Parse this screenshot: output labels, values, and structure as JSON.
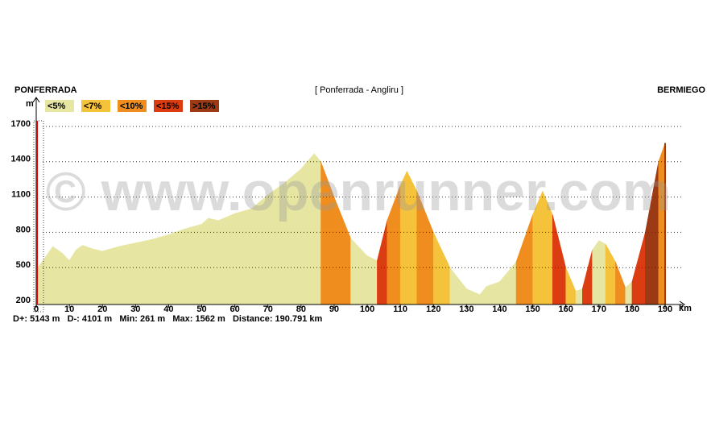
{
  "chart_data": {
    "type": "elevation-area",
    "start_label": "PONFERRADA",
    "title": "[ Ponferrada - Angliru ]",
    "end_label": "BERMIEGO",
    "y_label": "m",
    "x_label": "km",
    "watermark": "© www.openrunner.com",
    "stats": "D+: 5143 m   D-: 4101 m   Min: 261 m   Max: 1562 m   Distance: 190.791 km",
    "legend": [
      {
        "name": "<5%",
        "color": "#e6e6a2"
      },
      {
        "name": "<7%",
        "color": "#f5c23c"
      },
      {
        "name": "<10%",
        "color": "#ef8e1e"
      },
      {
        "name": "<15%",
        "color": "#dc3c12"
      },
      {
        "name": ">15%",
        "color": "#9b3a14"
      }
    ],
    "x": [
      0,
      2,
      5,
      8,
      10,
      12,
      14,
      17,
      20,
      25,
      30,
      35,
      40,
      45,
      50,
      52,
      55,
      60,
      65,
      70,
      75,
      80,
      84,
      86,
      90,
      95,
      100,
      103,
      106,
      110,
      112,
      115,
      120,
      125,
      130,
      134,
      136,
      140,
      145,
      150,
      153,
      156,
      160,
      163,
      165,
      168,
      170,
      172,
      175,
      178,
      180,
      184,
      188,
      190
    ],
    "series": [
      {
        "name": "Altitude",
        "values": [
          480,
          560,
          680,
          620,
          560,
          650,
          690,
          660,
          640,
          680,
          710,
          740,
          780,
          830,
          870,
          920,
          900,
          960,
          1000,
          1120,
          1220,
          1340,
          1470,
          1400,
          1100,
          750,
          600,
          560,
          900,
          1200,
          1320,
          1150,
          800,
          500,
          320,
          270,
          340,
          380,
          550,
          950,
          1150,
          950,
          500,
          300,
          320,
          650,
          730,
          700,
          550,
          330,
          380,
          800,
          1400,
          1560
        ],
        "grades": [
          0,
          0,
          0,
          0,
          0,
          0,
          0,
          0,
          0,
          0,
          0,
          0,
          0,
          0,
          0,
          0,
          0,
          0,
          0,
          0,
          0,
          0,
          0,
          2,
          2,
          0,
          0,
          3,
          2,
          1,
          1,
          2,
          1,
          0,
          0,
          0,
          0,
          0,
          2,
          1,
          1,
          3,
          1,
          0,
          3,
          0,
          0,
          1,
          2,
          0,
          3,
          4,
          2,
          4
        ]
      }
    ],
    "xlim": [
      0,
      190
    ],
    "xticks": [
      0,
      10,
      20,
      30,
      40,
      50,
      60,
      70,
      80,
      90,
      100,
      110,
      120,
      130,
      140,
      150,
      160,
      170,
      180,
      190
    ],
    "ylim": [
      200,
      1700
    ],
    "yticks": [
      200,
      500,
      800,
      1100,
      1400,
      1700
    ],
    "grid": true
  }
}
